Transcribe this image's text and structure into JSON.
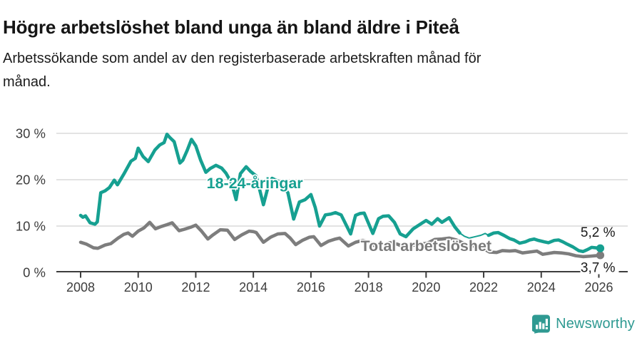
{
  "header": {
    "title": "Högre arbetslöshet bland unga än bland äldre i Piteå",
    "subtitle_line1": "Arbetssökande som andel av den registerbaserade arbetskraften månad för",
    "subtitle_line2": "månad."
  },
  "footer": {
    "brand": "Newsworthy"
  },
  "colors": {
    "youth_teal": "#16a091",
    "total_gray": "#7d7d7d",
    "total_label_gray": "#7a7a7a",
    "annotation_dark": "#1a1a1a",
    "axis_dark": "#3d3d3d",
    "gridline_gray": "#dadada",
    "logo_teal": "#2f9a92",
    "background": "#ffffff"
  },
  "chart_data": {
    "type": "line",
    "title": "Högre arbetslöshet bland unga än bland äldre i Piteå",
    "subtitle": "Arbetssökande som andel av den registerbaserade arbetskraften månad för månad.",
    "unit": "%",
    "grid": "horizontal-only",
    "legend_position": "inline-labels",
    "xlim": [
      2007.15,
      2026.6
    ],
    "ylim": [
      0,
      30
    ],
    "x_ticks": [
      2008,
      2010,
      2012,
      2014,
      2016,
      2018,
      2020,
      2022,
      2024,
      2026
    ],
    "x_tick_labels": [
      "2008",
      "2010",
      "2012",
      "2014",
      "2016",
      "2018",
      "2020",
      "2022",
      "2024",
      "2026"
    ],
    "y_ticks": [
      0,
      10,
      20,
      30
    ],
    "y_tick_labels": [
      "0 %",
      "10 %",
      "20 %",
      "30 %"
    ],
    "series": [
      {
        "name": "Total arbetslöshet",
        "color": "#7d7d7d",
        "label": "Total arbetslöshet",
        "label_color": "#7a7a7a",
        "label_at": {
          "x": 2020.0,
          "y": 5.8
        },
        "end_dot": {
          "x": 2026.05,
          "y": 3.7
        },
        "end_value_label": "3,7 %",
        "end_label_side": "below",
        "segments": [
          {
            "style": "thick",
            "points": [
              [
                2008.0,
                6.5
              ],
              [
                2008.2,
                6.1
              ],
              [
                2008.45,
                5.3
              ],
              [
                2008.6,
                5.2
              ],
              [
                2008.85,
                5.9
              ],
              [
                2009.05,
                6.2
              ],
              [
                2009.3,
                7.4
              ],
              [
                2009.5,
                8.2
              ],
              [
                2009.65,
                8.5
              ],
              [
                2009.8,
                7.8
              ],
              [
                2010.0,
                8.9
              ],
              [
                2010.2,
                9.6
              ],
              [
                2010.4,
                10.8
              ],
              [
                2010.6,
                9.4
              ],
              [
                2010.8,
                9.9
              ],
              [
                2011.0,
                10.3
              ],
              [
                2011.18,
                10.7
              ],
              [
                2011.42,
                9.0
              ],
              [
                2011.6,
                9.3
              ],
              [
                2011.85,
                9.8
              ],
              [
                2012.0,
                10.2
              ],
              [
                2012.2,
                8.9
              ],
              [
                2012.42,
                7.2
              ],
              [
                2012.6,
                8.1
              ],
              [
                2012.85,
                9.2
              ],
              [
                2013.1,
                9.1
              ],
              [
                2013.35,
                7.1
              ],
              [
                2013.6,
                8.1
              ],
              [
                2013.85,
                8.9
              ],
              [
                2014.0,
                8.8
              ],
              [
                2014.1,
                8.6
              ],
              [
                2014.35,
                6.5
              ],
              [
                2014.6,
                7.6
              ],
              [
                2014.85,
                8.3
              ],
              [
                2015.1,
                8.4
              ],
              [
                2015.28,
                7.4
              ],
              [
                2015.47,
                6.0
              ],
              [
                2015.7,
                6.9
              ],
              [
                2015.95,
                7.6
              ],
              [
                2016.1,
                7.7
              ],
              [
                2016.35,
                5.8
              ],
              [
                2016.6,
                6.7
              ],
              [
                2016.85,
                7.2
              ],
              [
                2017.0,
                7.4
              ],
              [
                2017.3,
                5.7
              ],
              [
                2017.55,
                6.5
              ],
              [
                2017.8,
                6.9
              ],
              [
                2018.0,
                6.6
              ],
              [
                2018.25,
                5.6
              ],
              [
                2018.5,
                6.0
              ],
              [
                2018.75,
                6.4
              ],
              [
                2019.0,
                6.1
              ],
              [
                2019.25,
                5.4
              ],
              [
                2019.5,
                5.8
              ],
              [
                2019.8,
                6.1
              ],
              [
                2020.05,
                6.3
              ],
              [
                2020.3,
                7.1
              ],
              [
                2020.55,
                7.2
              ],
              [
                2020.8,
                7.4
              ],
              [
                2021.05,
                7.0
              ],
              [
                2021.3,
                6.3
              ],
              [
                2021.55,
                5.8
              ],
              [
                2021.8,
                5.5
              ],
              [
                2022.0,
                5.1
              ],
              [
                2022.2,
                4.4
              ],
              [
                2022.45,
                4.3
              ],
              [
                2022.65,
                4.7
              ],
              [
                2022.9,
                4.6
              ],
              [
                2023.1,
                4.7
              ],
              [
                2023.35,
                4.2
              ],
              [
                2023.6,
                4.4
              ],
              [
                2023.85,
                4.6
              ],
              [
                2024.05,
                3.9
              ],
              [
                2024.25,
                4.1
              ],
              [
                2024.45,
                4.3
              ],
              [
                2024.7,
                4.2
              ],
              [
                2024.95,
                4.0
              ],
              [
                2025.2,
                3.6
              ],
              [
                2025.45,
                3.4
              ],
              [
                2025.7,
                3.5
              ],
              [
                2025.9,
                3.6
              ],
              [
                2026.05,
                3.7
              ]
            ]
          }
        ]
      },
      {
        "name": "18-24-åringar",
        "color": "#16a091",
        "label": "18-24-åringar",
        "label_color": "#16a091",
        "label_at": {
          "x": 2014.05,
          "y": 19.3
        },
        "end_dot": {
          "x": 2026.05,
          "y": 5.2
        },
        "end_value_label": "5,2 %",
        "end_label_side": "above",
        "segments": [
          {
            "style": "thick",
            "points": [
              [
                2008.0,
                12.3
              ],
              [
                2008.08,
                11.9
              ],
              [
                2008.17,
                12.2
              ],
              [
                2008.33,
                10.7
              ],
              [
                2008.5,
                10.4
              ],
              [
                2008.58,
                10.9
              ],
              [
                2008.7,
                17.2
              ],
              [
                2008.85,
                17.6
              ],
              [
                2009.0,
                18.3
              ],
              [
                2009.17,
                19.9
              ],
              [
                2009.28,
                18.9
              ],
              [
                2009.5,
                21.2
              ],
              [
                2009.75,
                24.0
              ],
              [
                2009.9,
                24.6
              ],
              [
                2010.0,
                26.8
              ],
              [
                2010.17,
                25.0
              ],
              [
                2010.35,
                23.9
              ],
              [
                2010.58,
                26.4
              ],
              [
                2010.75,
                27.5
              ],
              [
                2010.9,
                28.0
              ],
              [
                2011.0,
                29.8
              ],
              [
                2011.1,
                29.1
              ],
              [
                2011.25,
                28.2
              ],
              [
                2011.45,
                23.6
              ],
              [
                2011.55,
                24.2
              ],
              [
                2011.7,
                26.3
              ],
              [
                2011.85,
                28.7
              ],
              [
                2012.0,
                27.3
              ],
              [
                2012.17,
                24.2
              ],
              [
                2012.35,
                21.6
              ],
              [
                2012.5,
                22.4
              ],
              [
                2012.7,
                23.1
              ],
              [
                2012.9,
                22.5
              ],
              [
                2013.05,
                21.4
              ],
              [
                2013.25,
                19.2
              ],
              [
                2013.4,
                15.7
              ],
              [
                2013.55,
                21.3
              ],
              [
                2013.75,
                22.8
              ],
              [
                2013.9,
                21.8
              ],
              [
                2014.1,
                20.8
              ],
              [
                2014.35,
                14.6
              ],
              [
                2014.5,
                18.2
              ],
              [
                2014.65,
                20.3
              ],
              [
                2014.85,
                19.7
              ],
              [
                2015.05,
                18.3
              ],
              [
                2015.2,
                17.2
              ],
              [
                2015.4,
                11.5
              ],
              [
                2015.6,
                15.2
              ],
              [
                2015.8,
                15.7
              ],
              [
                2016.0,
                16.8
              ],
              [
                2016.15,
                14.0
              ],
              [
                2016.3,
                10.0
              ],
              [
                2016.5,
                12.4
              ],
              [
                2016.7,
                12.6
              ],
              [
                2016.85,
                12.9
              ],
              [
                2017.05,
                12.4
              ],
              [
                2017.25,
                9.9
              ],
              [
                2017.38,
                8.3
              ],
              [
                2017.55,
                12.3
              ],
              [
                2017.7,
                12.7
              ],
              [
                2017.85,
                12.8
              ],
              [
                2018.0,
                10.6
              ],
              [
                2018.15,
                8.4
              ],
              [
                2018.35,
                11.6
              ],
              [
                2018.5,
                12.1
              ],
              [
                2018.7,
                12.2
              ],
              [
                2018.9,
                10.8
              ],
              [
                2019.1,
                8.3
              ],
              [
                2019.3,
                7.7
              ],
              [
                2019.55,
                9.4
              ],
              [
                2019.75,
                10.2
              ],
              [
                2019.85,
                10.6
              ],
              [
                2020.0,
                11.2
              ],
              [
                2020.2,
                10.4
              ],
              [
                2020.4,
                11.6
              ],
              [
                2020.55,
                10.8
              ],
              [
                2020.8,
                11.8
              ],
              [
                2021.0,
                9.8
              ],
              [
                2021.17,
                8.5
              ]
            ]
          },
          {
            "style": "thin",
            "points": [
              [
                2021.17,
                8.5
              ],
              [
                2021.33,
                7.8
              ],
              [
                2021.5,
                7.4
              ],
              [
                2021.7,
                7.7
              ],
              [
                2021.9,
                8.0
              ],
              [
                2022.05,
                8.4
              ],
              [
                2022.17,
                8.0
              ]
            ]
          },
          {
            "style": "thick",
            "points": [
              [
                2022.17,
                8.0
              ],
              [
                2022.35,
                8.5
              ],
              [
                2022.5,
                8.6
              ],
              [
                2022.7,
                8.0
              ],
              [
                2022.9,
                7.3
              ],
              [
                2023.05,
                7.0
              ],
              [
                2023.25,
                6.3
              ],
              [
                2023.45,
                6.6
              ],
              [
                2023.6,
                7.0
              ],
              [
                2023.75,
                7.2
              ],
              [
                2023.9,
                6.9
              ],
              [
                2024.1,
                6.6
              ],
              [
                2024.25,
                6.4
              ],
              [
                2024.45,
                6.9
              ],
              [
                2024.6,
                7.0
              ],
              [
                2024.75,
                6.6
              ],
              [
                2024.9,
                6.1
              ],
              [
                2025.1,
                5.5
              ],
              [
                2025.3,
                4.7
              ],
              [
                2025.45,
                4.5
              ],
              [
                2025.6,
                4.9
              ],
              [
                2025.75,
                5.4
              ],
              [
                2025.9,
                5.3
              ],
              [
                2026.05,
                5.2
              ]
            ]
          }
        ]
      }
    ]
  }
}
